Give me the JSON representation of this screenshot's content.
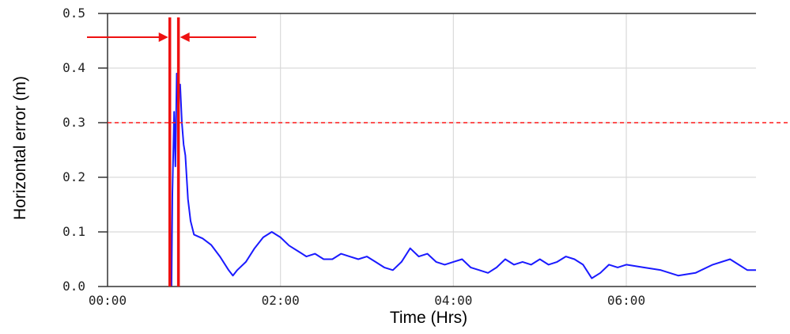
{
  "chart_data": {
    "type": "line",
    "title": "",
    "xlabel": "Time (Hrs)",
    "ylabel": "Horizontal error (m)",
    "xlim_hours": [
      0,
      7.5
    ],
    "ylim": [
      0,
      0.5
    ],
    "grid": true,
    "x_ticks": [
      {
        "value": 0,
        "label": "00:00"
      },
      {
        "value": 2,
        "label": "02:00"
      },
      {
        "value": 4,
        "label": "04:00"
      },
      {
        "value": 6,
        "label": "06:00"
      }
    ],
    "y_ticks": [
      {
        "value": 0.0,
        "label": "0.0"
      },
      {
        "value": 0.1,
        "label": "0.1"
      },
      {
        "value": 0.2,
        "label": "0.2"
      },
      {
        "value": 0.3,
        "label": "0.3"
      },
      {
        "value": 0.4,
        "label": "0.4"
      },
      {
        "value": 0.5,
        "label": "0.5"
      }
    ],
    "series": [
      {
        "color": "#1a1aff",
        "points": [
          [
            0.74,
            0.0
          ],
          [
            0.75,
            0.17
          ],
          [
            0.77,
            0.32
          ],
          [
            0.785,
            0.22
          ],
          [
            0.8,
            0.39
          ],
          [
            0.82,
            0.35
          ],
          [
            0.84,
            0.37
          ],
          [
            0.86,
            0.3
          ],
          [
            0.88,
            0.26
          ],
          [
            0.9,
            0.24
          ],
          [
            0.93,
            0.16
          ],
          [
            0.96,
            0.12
          ],
          [
            1.0,
            0.095
          ],
          [
            1.1,
            0.088
          ],
          [
            1.2,
            0.076
          ],
          [
            1.3,
            0.055
          ],
          [
            1.4,
            0.03
          ],
          [
            1.45,
            0.02
          ],
          [
            1.5,
            0.03
          ],
          [
            1.6,
            0.045
          ],
          [
            1.7,
            0.07
          ],
          [
            1.8,
            0.09
          ],
          [
            1.9,
            0.1
          ],
          [
            2.0,
            0.09
          ],
          [
            2.1,
            0.075
          ],
          [
            2.2,
            0.065
          ],
          [
            2.3,
            0.055
          ],
          [
            2.4,
            0.06
          ],
          [
            2.5,
            0.05
          ],
          [
            2.6,
            0.05
          ],
          [
            2.7,
            0.06
          ],
          [
            2.8,
            0.055
          ],
          [
            2.9,
            0.05
          ],
          [
            3.0,
            0.055
          ],
          [
            3.1,
            0.045
          ],
          [
            3.2,
            0.035
          ],
          [
            3.3,
            0.03
          ],
          [
            3.4,
            0.045
          ],
          [
            3.5,
            0.07
          ],
          [
            3.6,
            0.055
          ],
          [
            3.7,
            0.06
          ],
          [
            3.8,
            0.045
          ],
          [
            3.9,
            0.04
          ],
          [
            4.0,
            0.045
          ],
          [
            4.1,
            0.05
          ],
          [
            4.2,
            0.035
          ],
          [
            4.3,
            0.03
          ],
          [
            4.4,
            0.025
          ],
          [
            4.5,
            0.035
          ],
          [
            4.6,
            0.05
          ],
          [
            4.7,
            0.04
          ],
          [
            4.8,
            0.045
          ],
          [
            4.9,
            0.04
          ],
          [
            5.0,
            0.05
          ],
          [
            5.1,
            0.04
          ],
          [
            5.2,
            0.045
          ],
          [
            5.3,
            0.055
          ],
          [
            5.4,
            0.05
          ],
          [
            5.5,
            0.04
          ],
          [
            5.6,
            0.015
          ],
          [
            5.7,
            0.025
          ],
          [
            5.8,
            0.04
          ],
          [
            5.9,
            0.035
          ],
          [
            6.0,
            0.04
          ],
          [
            6.2,
            0.035
          ],
          [
            6.4,
            0.03
          ],
          [
            6.6,
            0.02
          ],
          [
            6.8,
            0.025
          ],
          [
            7.0,
            0.04
          ],
          [
            7.2,
            0.05
          ],
          [
            7.3,
            0.04
          ],
          [
            7.4,
            0.03
          ],
          [
            7.5,
            0.03
          ]
        ]
      }
    ],
    "annotations": {
      "threshold_line": {
        "value": 0.3,
        "color": "#ff1a1a"
      },
      "interval_markers": {
        "x_hours": [
          0.72,
          0.82
        ],
        "color": "#ee1111"
      },
      "arrows_color": "#ee1111"
    }
  }
}
